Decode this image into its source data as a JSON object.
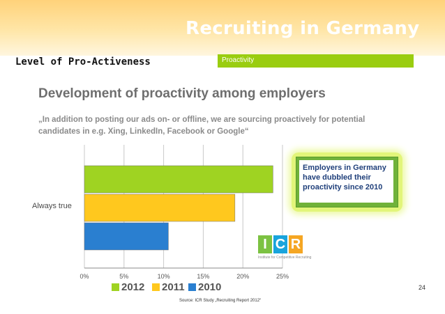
{
  "slide": {
    "title": "Recruiting in Germany",
    "subtitle": "Level of Pro-Activeness",
    "section": "Proactivity",
    "page_number": "24",
    "source": "Source: ICR Study „Recruiting Report 2012“"
  },
  "chart_data": {
    "type": "bar",
    "orientation": "horizontal",
    "title": "Development of proactivity among employers",
    "subtitle": "„In addition to posting our ads on- or offline, we are sourcing proactively for potential candidates in e.g. Xing, LinkedIn, Facebook or Google“",
    "categories": [
      "Always true"
    ],
    "series": [
      {
        "name": "2012",
        "values": [
          23.8
        ],
        "color": "#9fd322"
      },
      {
        "name": "2011",
        "values": [
          19.0
        ],
        "color": "#ffc81e"
      },
      {
        "name": "2010",
        "values": [
          10.6
        ],
        "color": "#2a7fd0"
      }
    ],
    "xlim": [
      0,
      25
    ],
    "x_ticks": [
      "0%",
      "5%",
      "10%",
      "15%",
      "20%",
      "25%"
    ],
    "grid": "vertical",
    "legend": "bottom",
    "annotation": "Employers in Germany have dubbled their proactivity since 2010"
  },
  "logo": {
    "letters": [
      "I",
      "C",
      "R"
    ],
    "colors": [
      "#7cc242",
      "#19a4dc",
      "#f5a623"
    ],
    "caption": "Institute for Competitive Recruiting"
  },
  "colors": {
    "title_bar": "#ffd27a",
    "section_banner": "#9acd10",
    "callout_border": "#70b23a"
  }
}
